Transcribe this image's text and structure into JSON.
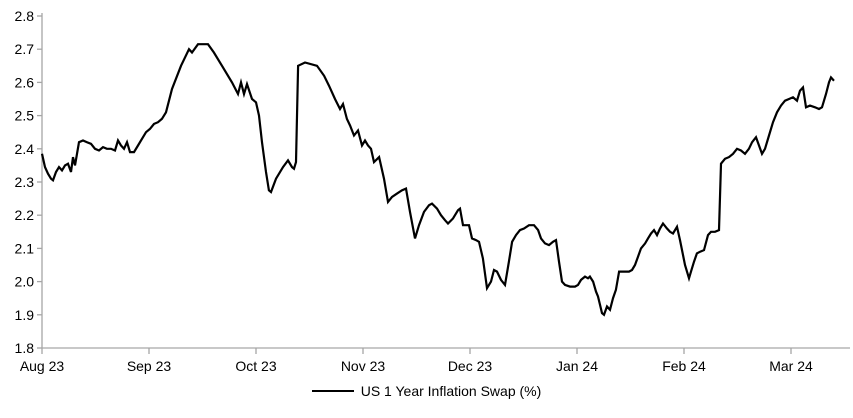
{
  "chart_data": {
    "type": "line",
    "title": "",
    "legend_label": "US 1 Year Inflation Swap (%)",
    "legend_position": "bottom-center",
    "grid": false,
    "line_color": "#000000",
    "axis_color": "#a6a6a6",
    "text_color": "#000000",
    "ylim": [
      1.8,
      2.8
    ],
    "y_ticks": [
      1.8,
      1.9,
      2.0,
      2.1,
      2.2,
      2.3,
      2.4,
      2.5,
      2.6,
      2.7,
      2.8
    ],
    "y_tick_labels": [
      "1.8",
      "1.9",
      "2.0",
      "2.1",
      "2.2",
      "2.3",
      "2.4",
      "2.5",
      "2.6",
      "2.7",
      "2.8"
    ],
    "x_tick_labels": [
      "Aug 23",
      "Sep 23",
      "Oct 23",
      "Nov 23",
      "Dec 23",
      "Jan 24",
      "Feb 24",
      "Mar 24"
    ],
    "x_unit": "months since Aug 2023; fractional position between month ticks",
    "series": [
      {
        "name": "US 1 Year Inflation Swap (%)",
        "points": [
          [
            0.0,
            2.385
          ],
          [
            0.028,
            2.345
          ],
          [
            0.056,
            2.325
          ],
          [
            0.084,
            2.31
          ],
          [
            0.103,
            2.305
          ],
          [
            0.131,
            2.33
          ],
          [
            0.159,
            2.345
          ],
          [
            0.187,
            2.335
          ],
          [
            0.215,
            2.35
          ],
          [
            0.243,
            2.355
          ],
          [
            0.271,
            2.33
          ],
          [
            0.29,
            2.375
          ],
          [
            0.308,
            2.35
          ],
          [
            0.346,
            2.42
          ],
          [
            0.383,
            2.425
          ],
          [
            0.421,
            2.42
          ],
          [
            0.458,
            2.415
          ],
          [
            0.495,
            2.4
          ],
          [
            0.533,
            2.395
          ],
          [
            0.57,
            2.405
          ],
          [
            0.607,
            2.4
          ],
          [
            0.645,
            2.4
          ],
          [
            0.682,
            2.395
          ],
          [
            0.71,
            2.425
          ],
          [
            0.738,
            2.41
          ],
          [
            0.766,
            2.4
          ],
          [
            0.794,
            2.42
          ],
          [
            0.822,
            2.39
          ],
          [
            0.86,
            2.39
          ],
          [
            0.897,
            2.41
          ],
          [
            0.935,
            2.43
          ],
          [
            0.972,
            2.45
          ],
          [
            1.009,
            2.46
          ],
          [
            1.047,
            2.475
          ],
          [
            1.084,
            2.48
          ],
          [
            1.121,
            2.49
          ],
          [
            1.159,
            2.51
          ],
          [
            1.215,
            2.58
          ],
          [
            1.299,
            2.65
          ],
          [
            1.374,
            2.7
          ],
          [
            1.402,
            2.69
          ],
          [
            1.458,
            2.715
          ],
          [
            1.551,
            2.715
          ],
          [
            1.607,
            2.69
          ],
          [
            1.682,
            2.65
          ],
          [
            1.776,
            2.6
          ],
          [
            1.832,
            2.565
          ],
          [
            1.86,
            2.6
          ],
          [
            1.888,
            2.565
          ],
          [
            1.916,
            2.595
          ],
          [
            1.963,
            2.55
          ],
          [
            2.0,
            2.54
          ],
          [
            2.028,
            2.5
          ],
          [
            2.056,
            2.42
          ],
          [
            2.093,
            2.33
          ],
          [
            2.121,
            2.275
          ],
          [
            2.14,
            2.27
          ],
          [
            2.187,
            2.31
          ],
          [
            2.252,
            2.345
          ],
          [
            2.299,
            2.365
          ],
          [
            2.336,
            2.345
          ],
          [
            2.355,
            2.34
          ],
          [
            2.374,
            2.36
          ],
          [
            2.393,
            2.65
          ],
          [
            2.458,
            2.66
          ],
          [
            2.57,
            2.65
          ],
          [
            2.636,
            2.62
          ],
          [
            2.682,
            2.59
          ],
          [
            2.738,
            2.55
          ],
          [
            2.785,
            2.52
          ],
          [
            2.813,
            2.535
          ],
          [
            2.85,
            2.49
          ],
          [
            2.879,
            2.47
          ],
          [
            2.916,
            2.44
          ],
          [
            2.953,
            2.455
          ],
          [
            2.991,
            2.41
          ],
          [
            3.019,
            2.425
          ],
          [
            3.047,
            2.41
          ],
          [
            3.075,
            2.4
          ],
          [
            3.103,
            2.36
          ],
          [
            3.15,
            2.375
          ],
          [
            3.196,
            2.31
          ],
          [
            3.234,
            2.24
          ],
          [
            3.271,
            2.255
          ],
          [
            3.318,
            2.265
          ],
          [
            3.364,
            2.275
          ],
          [
            3.402,
            2.28
          ],
          [
            3.439,
            2.21
          ],
          [
            3.486,
            2.13
          ],
          [
            3.523,
            2.17
          ],
          [
            3.57,
            2.21
          ],
          [
            3.617,
            2.23
          ],
          [
            3.645,
            2.235
          ],
          [
            3.692,
            2.22
          ],
          [
            3.729,
            2.2
          ],
          [
            3.766,
            2.185
          ],
          [
            3.794,
            2.175
          ],
          [
            3.841,
            2.19
          ],
          [
            3.888,
            2.215
          ],
          [
            3.907,
            2.22
          ],
          [
            3.935,
            2.17
          ],
          [
            3.991,
            2.17
          ],
          [
            4.019,
            2.13
          ],
          [
            4.056,
            2.125
          ],
          [
            4.084,
            2.12
          ],
          [
            4.121,
            2.07
          ],
          [
            4.159,
            1.98
          ],
          [
            4.196,
            2.0
          ],
          [
            4.224,
            2.035
          ],
          [
            4.252,
            2.03
          ],
          [
            4.29,
            2.005
          ],
          [
            4.327,
            1.99
          ],
          [
            4.364,
            2.06
          ],
          [
            4.393,
            2.12
          ],
          [
            4.43,
            2.14
          ],
          [
            4.467,
            2.155
          ],
          [
            4.505,
            2.16
          ],
          [
            4.551,
            2.17
          ],
          [
            4.598,
            2.17
          ],
          [
            4.636,
            2.155
          ],
          [
            4.664,
            2.13
          ],
          [
            4.701,
            2.115
          ],
          [
            4.738,
            2.11
          ],
          [
            4.776,
            2.12
          ],
          [
            4.804,
            2.125
          ],
          [
            4.832,
            2.06
          ],
          [
            4.86,
            2.0
          ],
          [
            4.888,
            1.99
          ],
          [
            4.935,
            1.985
          ],
          [
            4.981,
            1.985
          ],
          [
            5.009,
            1.99
          ],
          [
            5.037,
            2.005
          ],
          [
            5.075,
            2.015
          ],
          [
            5.103,
            2.01
          ],
          [
            5.121,
            2.015
          ],
          [
            5.15,
            2.0
          ],
          [
            5.178,
            1.97
          ],
          [
            5.196,
            1.955
          ],
          [
            5.215,
            1.93
          ],
          [
            5.234,
            1.905
          ],
          [
            5.252,
            1.9
          ],
          [
            5.28,
            1.925
          ],
          [
            5.308,
            1.915
          ],
          [
            5.336,
            1.95
          ],
          [
            5.364,
            1.975
          ],
          [
            5.393,
            2.03
          ],
          [
            5.439,
            2.03
          ],
          [
            5.486,
            2.03
          ],
          [
            5.514,
            2.035
          ],
          [
            5.542,
            2.05
          ],
          [
            5.57,
            2.075
          ],
          [
            5.598,
            2.1
          ],
          [
            5.636,
            2.115
          ],
          [
            5.664,
            2.13
          ],
          [
            5.692,
            2.145
          ],
          [
            5.72,
            2.155
          ],
          [
            5.748,
            2.14
          ],
          [
            5.776,
            2.16
          ],
          [
            5.804,
            2.175
          ],
          [
            5.841,
            2.16
          ],
          [
            5.869,
            2.15
          ],
          [
            5.897,
            2.145
          ],
          [
            5.935,
            2.165
          ],
          [
            5.963,
            2.125
          ],
          [
            5.991,
            2.08
          ],
          [
            6.009,
            2.05
          ],
          [
            6.047,
            2.01
          ],
          [
            6.065,
            2.03
          ],
          [
            6.093,
            2.06
          ],
          [
            6.121,
            2.085
          ],
          [
            6.15,
            2.09
          ],
          [
            6.187,
            2.095
          ],
          [
            6.224,
            2.14
          ],
          [
            6.252,
            2.15
          ],
          [
            6.29,
            2.15
          ],
          [
            6.327,
            2.155
          ],
          [
            6.346,
            2.355
          ],
          [
            6.383,
            2.37
          ],
          [
            6.421,
            2.375
          ],
          [
            6.458,
            2.385
          ],
          [
            6.495,
            2.4
          ],
          [
            6.533,
            2.395
          ],
          [
            6.57,
            2.385
          ],
          [
            6.607,
            2.4
          ],
          [
            6.636,
            2.42
          ],
          [
            6.673,
            2.435
          ],
          [
            6.701,
            2.41
          ],
          [
            6.729,
            2.385
          ],
          [
            6.757,
            2.4
          ],
          [
            6.794,
            2.44
          ],
          [
            6.832,
            2.48
          ],
          [
            6.869,
            2.51
          ],
          [
            6.907,
            2.53
          ],
          [
            6.944,
            2.545
          ],
          [
            6.981,
            2.55
          ],
          [
            7.019,
            2.555
          ],
          [
            7.056,
            2.545
          ],
          [
            7.084,
            2.575
          ],
          [
            7.112,
            2.585
          ],
          [
            7.14,
            2.525
          ],
          [
            7.178,
            2.53
          ],
          [
            7.224,
            2.525
          ],
          [
            7.262,
            2.52
          ],
          [
            7.29,
            2.525
          ],
          [
            7.327,
            2.565
          ],
          [
            7.355,
            2.6
          ],
          [
            7.374,
            2.615
          ],
          [
            7.402,
            2.605
          ]
        ]
      }
    ]
  }
}
